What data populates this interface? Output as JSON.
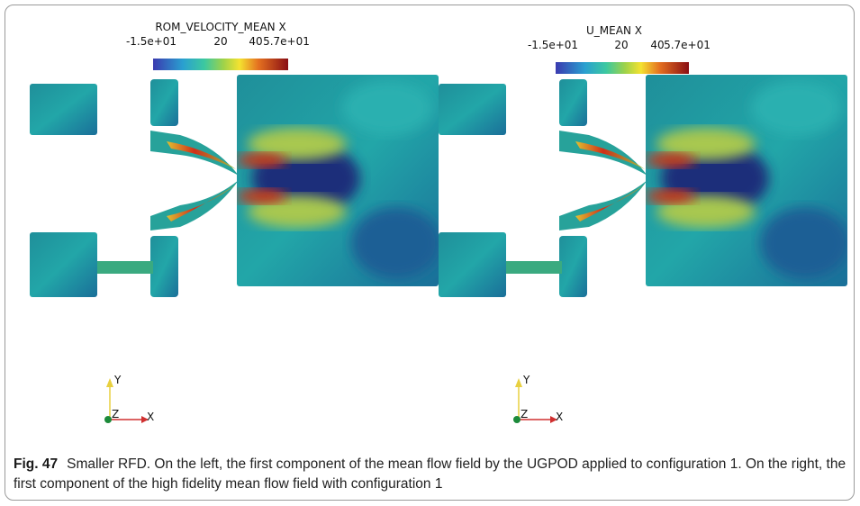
{
  "panels": [
    {
      "colorbar": {
        "title": "ROM_VELOCITY_MEAN X",
        "ticks": [
          "-1.5e+01",
          "20",
          "40",
          "5.7e+01"
        ]
      },
      "axes": {
        "y": "Y",
        "z": "Z",
        "x": "X"
      }
    },
    {
      "colorbar": {
        "title": "U_MEAN X",
        "ticks": [
          "-1.5e+01",
          "20",
          "40",
          "5.7e+01"
        ]
      },
      "axes": {
        "y": "Y",
        "z": "Z",
        "x": "X"
      }
    }
  ],
  "caption": {
    "label": "Fig. 47",
    "text": "Smaller RFD. On the left, the first component of the mean flow field by the UGPOD applied to configuration 1. On the right, the first component of the high fidelity mean flow field with configuration 1"
  }
}
